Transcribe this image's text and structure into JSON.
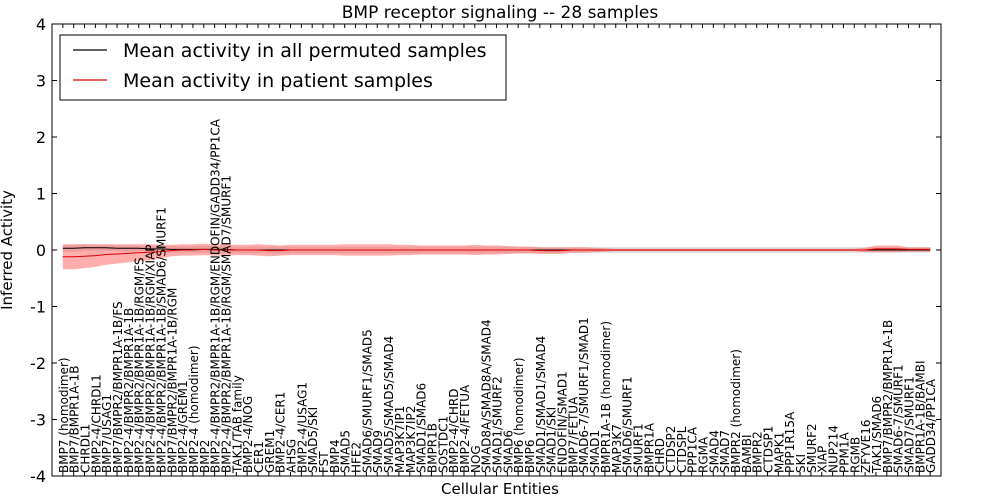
{
  "chart_data": {
    "type": "line",
    "title": "BMP receptor signaling -- 28 samples",
    "xlabel": "Cellular Entities",
    "ylabel": "Inferred Activity",
    "ylim": [
      -4,
      4
    ],
    "yticks": [
      -4,
      -3,
      -2,
      -1,
      0,
      1,
      2,
      3,
      4
    ],
    "grid": false,
    "legend_position": "top-left",
    "colors": {
      "permuted": "#000000",
      "patient": "#e00000",
      "patient_band": "#ff6a6a",
      "permuted_band": "#bdbdbd"
    },
    "categories": [
      "BMP7 (homodimer)",
      "BMP7/BMPR1A-1B",
      "CHRDL1",
      "BMP2-4/CHRDL1",
      "BMP7/USAG1",
      "BMP7/BMPR2/BMPR1A-1B/FS",
      "BMP2-4/BMPR2/BMPR1A-1B",
      "BMP2-4/BMPR2/BMPR1A-1B/RGM/FS",
      "BMP2-4/BMPR2/BMPR1A-1B/RGM/XIAP",
      "BMP2-4/BMPR2/BMPR1A-1B/SMAD6/SMURF1",
      "BMP7/BMPR2/BMPR1A-1B/RGM",
      "BMP2-4/GREM1",
      "BMP2-4 (homodimer)",
      "BMP2",
      "BMP2-4/BMPR2/BMPR1A-1B/RGM/ENDOFIN/GADD34/PP1CA",
      "BMP2-4/BMPR2/BMPR1A-1B/RGM/SMAD7/SMURF1",
      "TAK1/TAB family",
      "BMP2-4/NOG",
      "CER1",
      "GREM1",
      "BMP2-4/CER1",
      "AHSG",
      "BMP2-4/USAG1",
      "SMAD5/SKI",
      "FST",
      "BMP4",
      "SMAD5",
      "HFE2",
      "SMAD6/SMURF1/SMAD5",
      "SMAD9",
      "SMAD5/SMAD5/SMAD4",
      "MAP3K7IP1",
      "MAP3K7IP2",
      "SMAD1/SMAD6",
      "BMPR1B",
      "SOSTDC1",
      "BMP2-4/CHRD",
      "BMP2-4/FETUA",
      "NOG",
      "SMAD8A/SMAD8A/SMAD4",
      "SMAD1/SMURF2",
      "SMAD6",
      "BMP6 (homodimer)",
      "BMP6",
      "SMAD1/SMAD1/SMAD4",
      "SMAD1/SKI",
      "ENDOFIN/SMAD1",
      "BMP7/FETUA",
      "SMAD6-7/SMURF1/SMAD1",
      "SMAD1",
      "BMPR1A-1B (homodimer)",
      "MAP3K7",
      "SMAD6/SMURF1",
      "SMURF1",
      "BMPR1A",
      "CHRD",
      "CTDSP2",
      "CTDSPL",
      "PPP1CA",
      "RGMA",
      "SMAD4",
      "SMAD7",
      "BMPR2 (homodimer)",
      "BAMBI",
      "BMPR2",
      "CTDSP1",
      "MAPK1",
      "PPP1R15A",
      "SKI",
      "SMURF2",
      "XIAP",
      "NUP214",
      "PPM1A",
      "RGMB",
      "ZFYVE16",
      "TAK1/SMAD6",
      "BMP7/BMPR2/BMPR1A-1B",
      "SMAD6-7/SMURF1",
      "SMAD7/SMURF1",
      "BMPR1A-1B/BAMBI",
      "GADD34/PP1CA"
    ],
    "series": [
      {
        "name": "Mean activity in all permuted samples",
        "values": [
          0.03,
          0.03,
          0.04,
          0.04,
          0.04,
          0.03,
          0.03,
          0.03,
          0.02,
          0.02,
          0.01,
          0.01,
          0.01,
          0.01,
          0.01,
          0.01,
          0.0,
          0.0,
          0.0,
          0.0,
          0.0,
          0.0,
          0.0,
          0.0,
          0.0,
          0.0,
          0.0,
          0.0,
          0.0,
          0.0,
          0.0,
          0.0,
          0.0,
          0.0,
          0.0,
          0.0,
          0.0,
          0.0,
          0.0,
          0.0,
          0.0,
          0.0,
          0.0,
          0.0,
          0.0,
          0.0,
          0.0,
          0.0,
          0.0,
          0.0,
          0.0,
          0.0,
          0.0,
          0.0,
          0.0,
          0.0,
          0.0,
          0.0,
          0.0,
          0.0,
          0.0,
          0.0,
          0.0,
          0.0,
          0.0,
          0.0,
          0.0,
          0.0,
          0.0,
          0.0,
          0.0,
          0.0,
          0.0,
          0.0,
          0.0,
          0.0,
          0.0,
          0.0,
          0.0,
          0.0,
          0.0
        ],
        "band": [
          0.06,
          0.06,
          0.06,
          0.05,
          0.05,
          0.05,
          0.05,
          0.05,
          0.05,
          0.05,
          0.06,
          0.06,
          0.06,
          0.06,
          0.06,
          0.06,
          0.06,
          0.06,
          0.06,
          0.06,
          0.06,
          0.06,
          0.06,
          0.06,
          0.06,
          0.06,
          0.06,
          0.06,
          0.06,
          0.06,
          0.06,
          0.06,
          0.06,
          0.06,
          0.06,
          0.06,
          0.06,
          0.06,
          0.06,
          0.06,
          0.06,
          0.06,
          0.06,
          0.06,
          0.05,
          0.05,
          0.05,
          0.05,
          0.05,
          0.05,
          0.05,
          0.05,
          0.05,
          0.05,
          0.05,
          0.05,
          0.05,
          0.05,
          0.05,
          0.05,
          0.05,
          0.05,
          0.05,
          0.05,
          0.05,
          0.05,
          0.05,
          0.05,
          0.05,
          0.05,
          0.05,
          0.05,
          0.05,
          0.05,
          0.05,
          0.05,
          0.05,
          0.05,
          0.05,
          0.05,
          0.05
        ]
      },
      {
        "name": "Mean activity in patient samples",
        "values": [
          -0.12,
          -0.12,
          -0.11,
          -0.1,
          -0.08,
          -0.07,
          -0.06,
          -0.05,
          -0.04,
          -0.03,
          -0.01,
          0.0,
          0.0,
          0.01,
          0.0,
          0.0,
          0.0,
          0.0,
          0.0,
          -0.01,
          -0.01,
          0.0,
          0.0,
          0.0,
          0.0,
          0.0,
          0.0,
          0.0,
          0.0,
          0.0,
          0.0,
          0.0,
          0.0,
          0.0,
          0.0,
          0.0,
          0.0,
          0.0,
          0.0,
          0.0,
          0.0,
          0.0,
          0.0,
          0.0,
          -0.01,
          -0.01,
          -0.01,
          0.0,
          0.0,
          0.0,
          0.0,
          0.0,
          0.0,
          0.0,
          0.0,
          0.0,
          0.0,
          0.0,
          0.0,
          0.0,
          0.0,
          0.0,
          0.0,
          0.0,
          0.0,
          0.0,
          0.0,
          0.0,
          0.0,
          0.0,
          0.0,
          0.0,
          0.0,
          0.0,
          0.0,
          0.02,
          0.02,
          0.02,
          0.01,
          0.01,
          0.01
        ],
        "band": [
          0.22,
          0.22,
          0.21,
          0.2,
          0.18,
          0.17,
          0.16,
          0.15,
          0.14,
          0.12,
          0.1,
          0.1,
          0.1,
          0.1,
          0.1,
          0.1,
          0.09,
          0.09,
          0.1,
          0.1,
          0.09,
          0.09,
          0.09,
          0.09,
          0.09,
          0.09,
          0.1,
          0.1,
          0.1,
          0.1,
          0.1,
          0.09,
          0.09,
          0.08,
          0.08,
          0.08,
          0.08,
          0.08,
          0.09,
          0.08,
          0.08,
          0.07,
          0.06,
          0.06,
          0.06,
          0.06,
          0.06,
          0.05,
          0.05,
          0.04,
          0.03,
          0.02,
          0.02,
          0.02,
          0.02,
          0.02,
          0.02,
          0.02,
          0.02,
          0.02,
          0.02,
          0.02,
          0.02,
          0.02,
          0.02,
          0.02,
          0.02,
          0.02,
          0.02,
          0.02,
          0.02,
          0.02,
          0.02,
          0.02,
          0.04,
          0.06,
          0.06,
          0.06,
          0.04,
          0.04,
          0.04
        ]
      }
    ]
  }
}
